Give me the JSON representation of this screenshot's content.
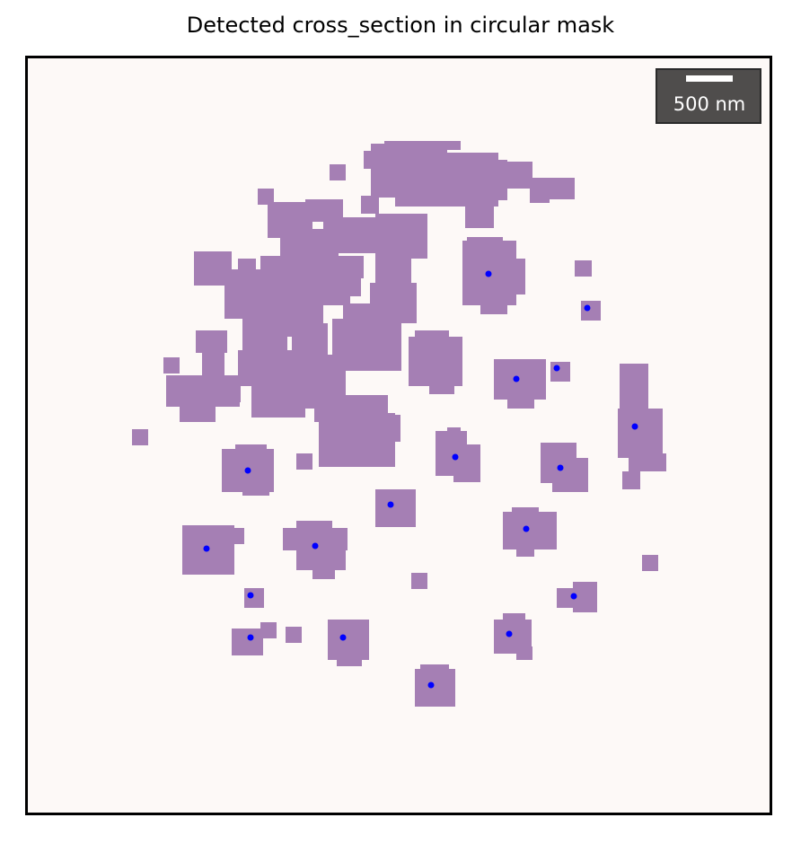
{
  "title": "Detected cross_section in circular mask",
  "scale_bar": {
    "label": "500 nm"
  },
  "colors": {
    "background": "#fdf9f7",
    "region_fill": "#a57fb4",
    "centroid_marker": "#0000ff",
    "scale_bar_box": "#4f4d4c",
    "frame": "#000000"
  },
  "image": {
    "description_items": "purple segmented regions inside a circular mask; blue markers at detected cross-section centroids",
    "detected_centroid_count": 20
  }
}
